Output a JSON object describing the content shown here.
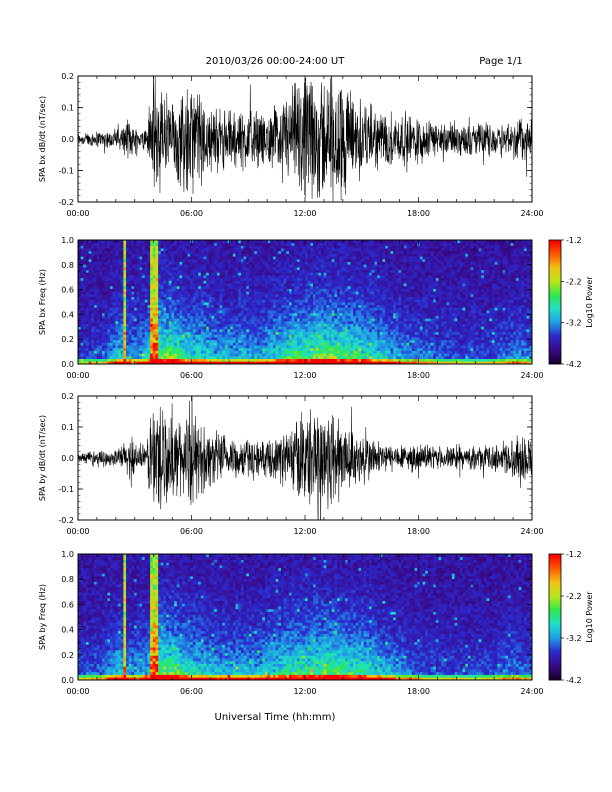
{
  "header": {
    "title": "2010/03/26  00:00-24:00 UT",
    "page": "Page 1/1"
  },
  "xlabel": "Universal Time (hh:mm)",
  "colors": {
    "trace": "#000000",
    "colormap": [
      "#1a0030",
      "#3a0a8a",
      "#2b2bd0",
      "#1fa0e6",
      "#1fe0c8",
      "#2ee84a",
      "#b8e81a",
      "#f0c414",
      "#ff5a00",
      "#ff0000"
    ]
  },
  "chart_data": [
    {
      "type": "line",
      "ylabel": "SPA bx dB/dt (nT/sec)",
      "ylim": [
        -0.2,
        0.2
      ],
      "yticks": [
        "0.2",
        "0.1",
        "0.0",
        "-0.1",
        "-0.2"
      ],
      "xlim": [
        0,
        24
      ],
      "xticks": [
        "00:00",
        "06:00",
        "12:00",
        "18:00",
        "24:00"
      ],
      "series": [
        {
          "x": [
            0,
            1,
            2,
            2.8,
            3.2,
            3.6,
            4.0,
            4.3,
            5,
            6,
            7,
            8,
            9,
            10,
            11,
            12,
            12.5,
            13,
            13.5,
            14,
            14.5,
            15,
            15.5,
            16,
            17,
            18,
            19,
            20,
            21,
            22,
            23,
            23.5,
            24
          ],
          "amplitude": [
            0.02,
            0.025,
            0.03,
            0.06,
            0.03,
            0.04,
            0.2,
            0.2,
            0.12,
            0.18,
            0.1,
            0.09,
            0.1,
            0.07,
            0.14,
            0.2,
            0.2,
            0.2,
            0.2,
            0.18,
            0.15,
            0.13,
            0.1,
            0.09,
            0.08,
            0.08,
            0.05,
            0.05,
            0.05,
            0.05,
            0.06,
            0.08,
            0.06
          ]
        }
      ]
    },
    {
      "type": "heatmap",
      "ylabel": "SPA bx Freq (Hz)",
      "ylim": [
        0.0,
        1.0
      ],
      "yticks": [
        "1.0",
        "0.8",
        "0.6",
        "0.4",
        "0.2",
        "0.0"
      ],
      "xlim": [
        0,
        24
      ],
      "xticks": [
        "00:00",
        "06:00",
        "12:00",
        "18:00",
        "24:00"
      ],
      "colorbar": {
        "label": "Log10 Power",
        "range": [
          -4.2,
          -1.2
        ],
        "ticks": [
          "-1.2",
          "-2.2",
          "-3.2",
          "-4.2"
        ]
      },
      "activity": [
        0.15,
        0.2,
        0.25,
        0.55,
        0.35,
        0.5,
        0.9,
        0.85,
        0.6,
        0.65,
        0.45,
        0.45,
        0.5,
        0.4,
        0.55,
        0.7,
        0.8,
        0.85,
        0.9,
        0.85,
        0.75,
        0.7,
        0.55,
        0.45,
        0.35,
        0.3,
        0.25,
        0.25,
        0.2,
        0.2,
        0.2,
        0.3,
        0.35,
        0.25
      ],
      "bursts": [
        2.5,
        3.9,
        4.1
      ]
    },
    {
      "type": "line",
      "ylabel": "SPA by dB/dt (nT/sec)",
      "ylim": [
        -0.2,
        0.2
      ],
      "yticks": [
        "0.2",
        "0.1",
        "0.0",
        "-0.1",
        "-0.2"
      ],
      "xlim": [
        0,
        24
      ],
      "xticks": [
        "00:00",
        "06:00",
        "12:00",
        "18:00",
        "24:00"
      ],
      "series": [
        {
          "x": [
            0,
            1,
            2,
            2.8,
            3.2,
            3.6,
            4.0,
            4.3,
            5,
            6,
            7,
            8,
            9,
            10,
            11,
            12,
            12.5,
            13,
            13.5,
            14,
            14.5,
            15,
            15.5,
            16,
            17,
            18,
            19,
            20,
            21,
            22,
            23,
            23.5,
            24
          ],
          "amplitude": [
            0.015,
            0.02,
            0.025,
            0.07,
            0.03,
            0.05,
            0.2,
            0.2,
            0.11,
            0.14,
            0.09,
            0.07,
            0.06,
            0.05,
            0.09,
            0.15,
            0.15,
            0.18,
            0.17,
            0.12,
            0.09,
            0.08,
            0.07,
            0.05,
            0.04,
            0.04,
            0.035,
            0.035,
            0.035,
            0.04,
            0.06,
            0.09,
            0.05
          ]
        }
      ]
    },
    {
      "type": "heatmap",
      "ylabel": "SPA by Freq (Hz)",
      "ylim": [
        0.0,
        1.0
      ],
      "yticks": [
        "1.0",
        "0.8",
        "0.6",
        "0.4",
        "0.2",
        "0.0"
      ],
      "xlim": [
        0,
        24
      ],
      "xticks": [
        "00:00",
        "06:00",
        "12:00",
        "18:00",
        "24:00"
      ],
      "colorbar": {
        "label": "Log10 Power",
        "range": [
          -4.2,
          -1.2
        ],
        "ticks": [
          "-1.2",
          "-2.2",
          "-3.2",
          "-4.2"
        ]
      },
      "activity": [
        0.2,
        0.25,
        0.3,
        0.55,
        0.35,
        0.5,
        0.9,
        0.85,
        0.6,
        0.6,
        0.45,
        0.45,
        0.5,
        0.45,
        0.55,
        0.7,
        0.75,
        0.8,
        0.85,
        0.8,
        0.75,
        0.65,
        0.5,
        0.4,
        0.3,
        0.25,
        0.2,
        0.2,
        0.2,
        0.2,
        0.2,
        0.3,
        0.3,
        0.25
      ],
      "bursts": [
        2.5,
        3.9,
        4.1
      ]
    }
  ]
}
